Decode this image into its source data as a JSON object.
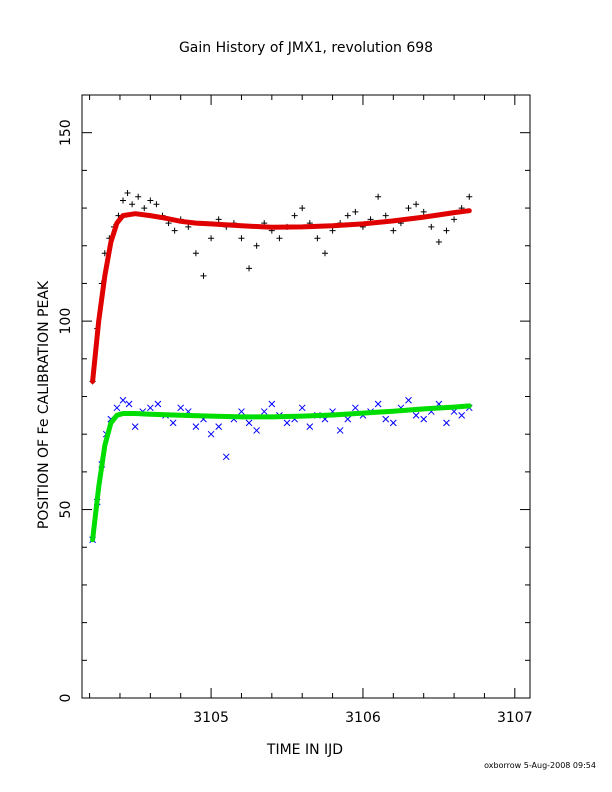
{
  "chart_data": {
    "type": "scatter",
    "title": "Gain History of JMX1, revolution 698",
    "xlabel": "TIME IN IJD",
    "ylabel": "POSITION OF Fe CALIBRATION PEAK",
    "xlim": [
      3104.15,
      3107.1
    ],
    "ylim": [
      0,
      160
    ],
    "x_ticks": [
      3105,
      3106,
      3107
    ],
    "y_ticks": [
      0,
      50,
      100,
      150
    ],
    "grid": false,
    "footer": "oxborrow  5-Aug-2008 09:54",
    "series": [
      {
        "marker": "+",
        "color": "#000000",
        "x": [
          3104.22,
          3104.25,
          3104.28,
          3104.3,
          3104.33,
          3104.36,
          3104.39,
          3104.42,
          3104.45,
          3104.48,
          3104.52,
          3104.56,
          3104.6,
          3104.64,
          3104.68,
          3104.72,
          3104.76,
          3104.8,
          3104.85,
          3104.9,
          3104.95,
          3105.0,
          3105.05,
          3105.1,
          3105.15,
          3105.2,
          3105.25,
          3105.3,
          3105.35,
          3105.4,
          3105.45,
          3105.5,
          3105.55,
          3105.6,
          3105.65,
          3105.7,
          3105.75,
          3105.8,
          3105.85,
          3105.9,
          3105.95,
          3106.0,
          3106.05,
          3106.1,
          3106.15,
          3106.2,
          3106.25,
          3106.3,
          3106.35,
          3106.4,
          3106.45,
          3106.5,
          3106.55,
          3106.6,
          3106.65,
          3106.7
        ],
        "y": [
          84,
          98,
          110,
          118,
          122,
          125,
          128,
          132,
          134,
          131,
          133,
          130,
          132,
          131,
          128,
          126,
          124,
          127,
          125,
          118,
          112,
          122,
          127,
          125,
          126,
          122,
          114,
          120,
          126,
          124,
          122,
          125,
          128,
          130,
          126,
          122,
          118,
          124,
          126,
          128,
          129,
          125,
          127,
          133,
          128,
          124,
          126,
          130,
          131,
          129,
          125,
          121,
          124,
          127,
          130,
          133
        ]
      },
      {
        "marker": "line-dense",
        "color": "#e00000",
        "x": [
          3104.22,
          3104.26,
          3104.3,
          3104.34,
          3104.38,
          3104.42,
          3104.5,
          3104.6,
          3104.7,
          3104.8,
          3104.9,
          3105.0,
          3105.2,
          3105.4,
          3105.6,
          3105.8,
          3106.0,
          3106.2,
          3106.4,
          3106.6,
          3106.7
        ],
        "y": [
          84,
          100,
          112,
          121,
          126,
          128,
          128.5,
          128,
          127.3,
          126.5,
          126,
          125.8,
          125.3,
          124.9,
          125,
          125.3,
          125.8,
          126.6,
          127.6,
          128.8,
          129.3
        ]
      },
      {
        "marker": "x",
        "color": "#0000ff",
        "x": [
          3104.22,
          3104.25,
          3104.28,
          3104.31,
          3104.34,
          3104.38,
          3104.42,
          3104.46,
          3104.5,
          3104.55,
          3104.6,
          3104.65,
          3104.7,
          3104.75,
          3104.8,
          3104.85,
          3104.9,
          3104.95,
          3105.0,
          3105.05,
          3105.1,
          3105.15,
          3105.2,
          3105.25,
          3105.3,
          3105.35,
          3105.4,
          3105.45,
          3105.5,
          3105.55,
          3105.6,
          3105.65,
          3105.7,
          3105.75,
          3105.8,
          3105.85,
          3105.9,
          3105.95,
          3106.0,
          3106.05,
          3106.1,
          3106.15,
          3106.2,
          3106.25,
          3106.3,
          3106.35,
          3106.4,
          3106.45,
          3106.5,
          3106.55,
          3106.6,
          3106.65,
          3106.7
        ],
        "y": [
          42,
          52,
          62,
          70,
          74,
          77,
          79,
          78,
          72,
          76,
          77,
          78,
          75,
          73,
          77,
          76,
          72,
          74,
          70,
          72,
          64,
          74,
          76,
          73,
          71,
          76,
          78,
          75,
          73,
          74,
          77,
          72,
          75,
          74,
          76,
          71,
          74,
          77,
          75,
          76,
          78,
          74,
          73,
          77,
          79,
          75,
          74,
          76,
          78,
          73,
          76,
          75,
          77
        ]
      },
      {
        "marker": "line-dense",
        "color": "#00dd00",
        "x": [
          3104.22,
          3104.26,
          3104.3,
          3104.34,
          3104.38,
          3104.42,
          3104.5,
          3104.6,
          3104.8,
          3105.0,
          3105.2,
          3105.4,
          3105.6,
          3105.8,
          3106.0,
          3106.2,
          3106.4,
          3106.6,
          3106.7
        ],
        "y": [
          42,
          56,
          67,
          73,
          75,
          75.5,
          75.5,
          75.3,
          75,
          74.8,
          74.6,
          74.6,
          74.8,
          75.1,
          75.6,
          76.1,
          76.7,
          77.2,
          77.5
        ]
      }
    ]
  }
}
